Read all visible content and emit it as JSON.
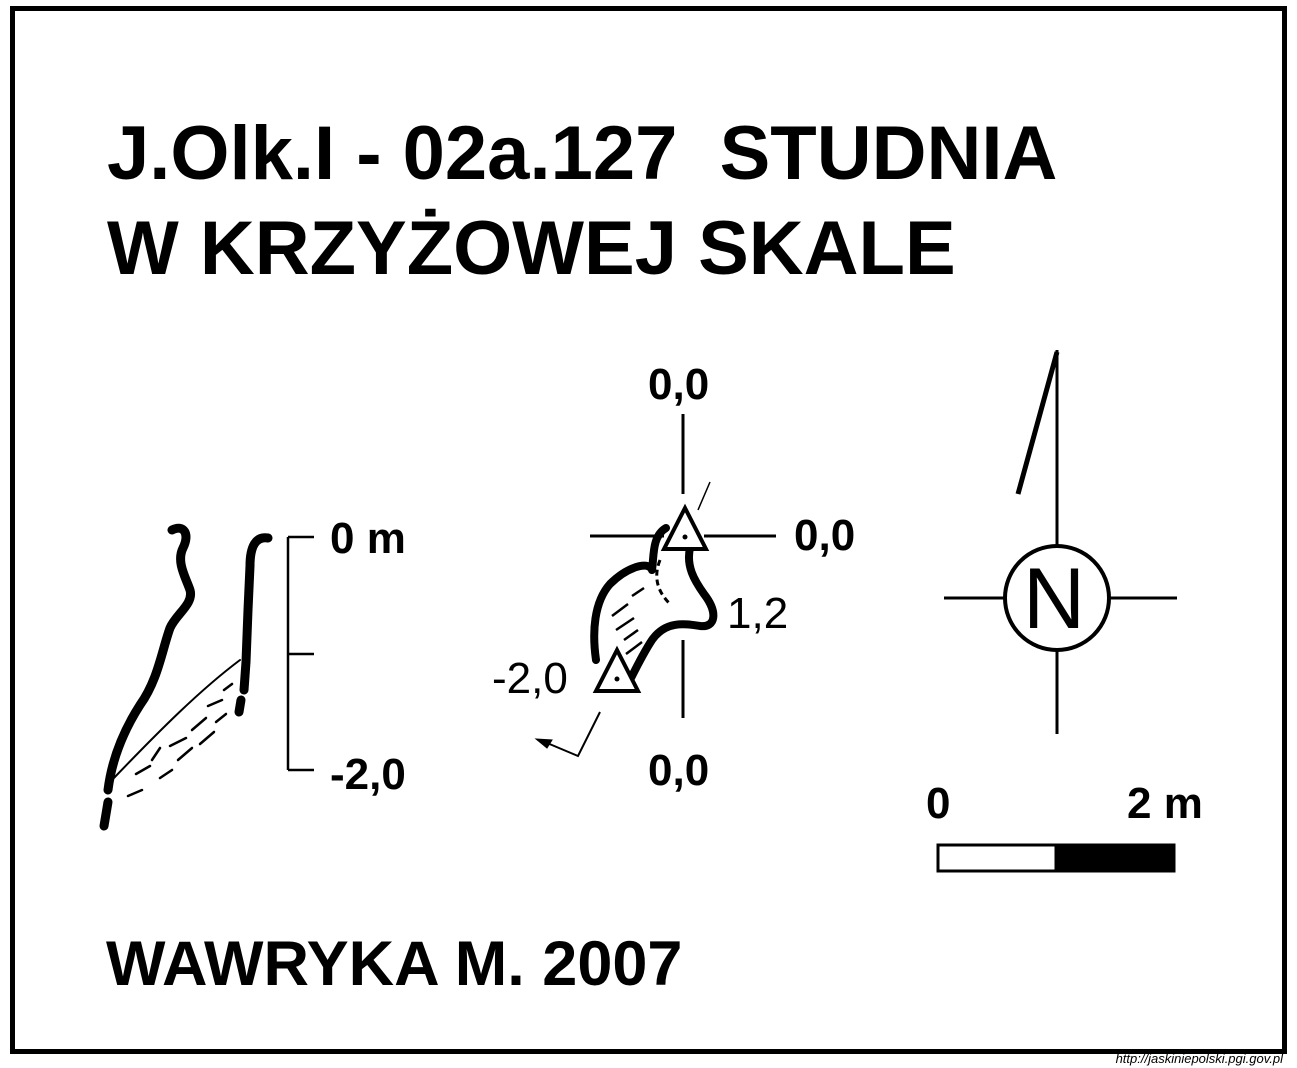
{
  "title": {
    "line1": "J.Olk.I - 02a.127  STUDNIA",
    "line2": "W KRZYŻOWEJ SKALE"
  },
  "profile": {
    "top_label": "0 m",
    "bottom_label": "-2,0"
  },
  "plan": {
    "north_label": "0,0",
    "east_label": "0,0",
    "south_label": "0,0",
    "depth_right": "1,2",
    "depth_left": "-2,0"
  },
  "compass": {
    "letter": "N"
  },
  "scale": {
    "start": "0",
    "end": "2 m"
  },
  "author": "WAWRYKA M. 2007",
  "source_url": "http://jaskiniepolski.pgi.gov.pl"
}
